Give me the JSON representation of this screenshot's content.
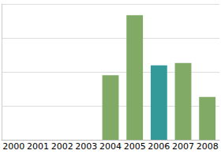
{
  "chart_data": {
    "type": "bar",
    "categories": [
      "2000",
      "2001",
      "2002",
      "2003",
      "2004",
      "2005",
      "2006",
      "2007",
      "2008"
    ],
    "values": [
      null,
      null,
      null,
      null,
      1.9,
      3.67,
      2.19,
      2.26,
      1.26
    ],
    "colors": [
      "#80aa66",
      "#80aa66",
      "#80aa66",
      "#80aa66",
      "#80aa66",
      "#80aa66",
      "#339999",
      "#80aa66",
      "#80aa66"
    ],
    "ylim": [
      0,
      4
    ],
    "yticks": [
      0,
      1,
      2,
      3,
      4
    ],
    "grid": true,
    "tick_labels": "x"
  }
}
